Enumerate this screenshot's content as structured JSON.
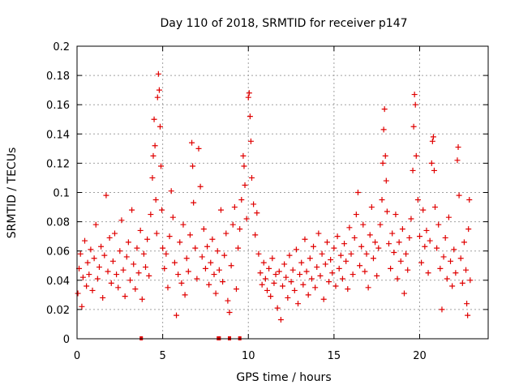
{
  "chart_data": {
    "type": "scatter",
    "title": "Day 110 of 2018, SRMTID for receiver p147",
    "xlabel": "GPS time / hours",
    "ylabel": "SRMTID / TECUs",
    "xlim": [
      0,
      24
    ],
    "ylim": [
      0,
      0.2
    ],
    "grid": true,
    "legend": "none",
    "marker": "plus",
    "color": "#e00000",
    "x_ticks": [
      0,
      5,
      10,
      15,
      20
    ],
    "x_tick_labels": [
      "0",
      "5",
      "10",
      "15",
      "20"
    ],
    "y_ticks": [
      0,
      0.02,
      0.04,
      0.06,
      0.08,
      0.1,
      0.12,
      0.14,
      0.16,
      0.18,
      0.2
    ],
    "y_tick_labels": [
      "0",
      "0.02",
      "0.04",
      "0.06",
      "0.08",
      "0.1",
      "0.12",
      "0.14",
      "0.16",
      "0.18",
      "0.2"
    ],
    "zero_markers_x": [
      3.75,
      8.25,
      8.3,
      8.9,
      9.5
    ],
    "series": [
      {
        "name": "SRMTID",
        "points": [
          [
            0.05,
            0.031
          ],
          [
            0.12,
            0.048
          ],
          [
            0.2,
            0.058
          ],
          [
            0.28,
            0.022
          ],
          [
            0.35,
            0.042
          ],
          [
            0.45,
            0.067
          ],
          [
            0.55,
            0.036
          ],
          [
            0.62,
            0.052
          ],
          [
            0.7,
            0.044
          ],
          [
            0.8,
            0.061
          ],
          [
            0.9,
            0.033
          ],
          [
            1.0,
            0.055
          ],
          [
            1.1,
            0.078
          ],
          [
            1.2,
            0.041
          ],
          [
            1.3,
            0.049
          ],
          [
            1.4,
            0.063
          ],
          [
            1.5,
            0.028
          ],
          [
            1.6,
            0.057
          ],
          [
            1.7,
            0.098
          ],
          [
            1.8,
            0.046
          ],
          [
            1.9,
            0.069
          ],
          [
            2.0,
            0.038
          ],
          [
            2.1,
            0.053
          ],
          [
            2.2,
            0.072
          ],
          [
            2.3,
            0.044
          ],
          [
            2.4,
            0.035
          ],
          [
            2.5,
            0.06
          ],
          [
            2.6,
            0.081
          ],
          [
            2.7,
            0.047
          ],
          [
            2.8,
            0.029
          ],
          [
            2.9,
            0.056
          ],
          [
            3.0,
            0.066
          ],
          [
            3.1,
            0.04
          ],
          [
            3.2,
            0.088
          ],
          [
            3.3,
            0.051
          ],
          [
            3.4,
            0.034
          ],
          [
            3.5,
            0.062
          ],
          [
            3.6,
            0.045
          ],
          [
            3.7,
            0.074
          ],
          [
            3.8,
            0.027
          ],
          [
            3.9,
            0.058
          ],
          [
            4.0,
            0.049
          ],
          [
            4.1,
            0.068
          ],
          [
            4.2,
            0.043
          ],
          [
            4.3,
            0.085
          ],
          [
            4.4,
            0.11
          ],
          [
            4.45,
            0.125
          ],
          [
            4.5,
            0.15
          ],
          [
            4.55,
            0.132
          ],
          [
            4.6,
            0.095
          ],
          [
            4.65,
            0.072
          ],
          [
            4.7,
            0.165
          ],
          [
            4.75,
            0.181
          ],
          [
            4.8,
            0.17
          ],
          [
            4.85,
            0.145
          ],
          [
            4.9,
            0.118
          ],
          [
            4.95,
            0.088
          ],
          [
            5.0,
            0.062
          ],
          [
            5.1,
            0.048
          ],
          [
            5.2,
            0.058
          ],
          [
            5.3,
            0.035
          ],
          [
            5.4,
            0.07
          ],
          [
            5.5,
            0.101
          ],
          [
            5.6,
            0.083
          ],
          [
            5.7,
            0.052
          ],
          [
            5.8,
            0.016
          ],
          [
            5.9,
            0.044
          ],
          [
            6.0,
            0.066
          ],
          [
            6.1,
            0.038
          ],
          [
            6.2,
            0.078
          ],
          [
            6.3,
            0.03
          ],
          [
            6.4,
            0.055
          ],
          [
            6.5,
            0.046
          ],
          [
            6.6,
            0.071
          ],
          [
            6.7,
            0.134
          ],
          [
            6.75,
            0.118
          ],
          [
            6.8,
            0.093
          ],
          [
            6.9,
            0.062
          ],
          [
            7.0,
            0.041
          ],
          [
            7.1,
            0.13
          ],
          [
            7.2,
            0.104
          ],
          [
            7.3,
            0.056
          ],
          [
            7.4,
            0.075
          ],
          [
            7.5,
            0.048
          ],
          [
            7.6,
            0.063
          ],
          [
            7.7,
            0.037
          ],
          [
            7.8,
            0.052
          ],
          [
            7.9,
            0.068
          ],
          [
            8.0,
            0.044
          ],
          [
            8.1,
            0.031
          ],
          [
            8.2,
            0.06
          ],
          [
            8.3,
            0.047
          ],
          [
            8.4,
            0.088
          ],
          [
            8.5,
            0.039
          ],
          [
            8.6,
            0.057
          ],
          [
            8.7,
            0.072
          ],
          [
            8.8,
            0.026
          ],
          [
            8.9,
            0.018
          ],
          [
            9.0,
            0.05
          ],
          [
            9.1,
            0.078
          ],
          [
            9.2,
            0.09
          ],
          [
            9.3,
            0.034
          ],
          [
            9.4,
            0.062
          ],
          [
            9.5,
            0.075
          ],
          [
            9.6,
            0.095
          ],
          [
            9.7,
            0.125
          ],
          [
            9.75,
            0.118
          ],
          [
            9.8,
            0.105
          ],
          [
            9.9,
            0.082
          ],
          [
            10.0,
            0.165
          ],
          [
            10.05,
            0.168
          ],
          [
            10.1,
            0.152
          ],
          [
            10.15,
            0.135
          ],
          [
            10.2,
            0.11
          ],
          [
            10.3,
            0.092
          ],
          [
            10.4,
            0.071
          ],
          [
            10.5,
            0.086
          ],
          [
            10.6,
            0.058
          ],
          [
            10.7,
            0.045
          ],
          [
            10.8,
            0.037
          ],
          [
            10.9,
            0.052
          ],
          [
            11.0,
            0.041
          ],
          [
            11.1,
            0.033
          ],
          [
            11.2,
            0.048
          ],
          [
            11.3,
            0.029
          ],
          [
            11.4,
            0.055
          ],
          [
            11.5,
            0.038
          ],
          [
            11.6,
            0.044
          ],
          [
            11.7,
            0.021
          ],
          [
            11.8,
            0.046
          ],
          [
            11.9,
            0.013
          ],
          [
            12.0,
            0.036
          ],
          [
            12.1,
            0.051
          ],
          [
            12.2,
            0.042
          ],
          [
            12.3,
            0.028
          ],
          [
            12.4,
            0.057
          ],
          [
            12.5,
            0.039
          ],
          [
            12.6,
            0.047
          ],
          [
            12.7,
            0.033
          ],
          [
            12.8,
            0.061
          ],
          [
            12.9,
            0.024
          ],
          [
            13.0,
            0.044
          ],
          [
            13.1,
            0.052
          ],
          [
            13.2,
            0.037
          ],
          [
            13.3,
            0.068
          ],
          [
            13.4,
            0.046
          ],
          [
            13.5,
            0.03
          ],
          [
            13.6,
            0.055
          ],
          [
            13.7,
            0.041
          ],
          [
            13.8,
            0.063
          ],
          [
            13.9,
            0.035
          ],
          [
            14.0,
            0.049
          ],
          [
            14.1,
            0.072
          ],
          [
            14.2,
            0.043
          ],
          [
            14.3,
            0.058
          ],
          [
            14.4,
            0.027
          ],
          [
            14.5,
            0.051
          ],
          [
            14.6,
            0.066
          ],
          [
            14.7,
            0.039
          ],
          [
            14.8,
            0.054
          ],
          [
            14.9,
            0.045
          ],
          [
            15.0,
            0.062
          ],
          [
            15.1,
            0.036
          ],
          [
            15.2,
            0.07
          ],
          [
            15.3,
            0.048
          ],
          [
            15.4,
            0.057
          ],
          [
            15.5,
            0.041
          ],
          [
            15.6,
            0.065
          ],
          [
            15.7,
            0.053
          ],
          [
            15.8,
            0.034
          ],
          [
            15.9,
            0.076
          ],
          [
            16.0,
            0.058
          ],
          [
            16.1,
            0.044
          ],
          [
            16.2,
            0.069
          ],
          [
            16.3,
            0.085
          ],
          [
            16.4,
            0.1
          ],
          [
            16.5,
            0.05
          ],
          [
            16.6,
            0.063
          ],
          [
            16.7,
            0.078
          ],
          [
            16.8,
            0.046
          ],
          [
            16.9,
            0.058
          ],
          [
            17.0,
            0.035
          ],
          [
            17.1,
            0.071
          ],
          [
            17.2,
            0.09
          ],
          [
            17.3,
            0.055
          ],
          [
            17.4,
            0.066
          ],
          [
            17.5,
            0.043
          ],
          [
            17.6,
            0.062
          ],
          [
            17.7,
            0.078
          ],
          [
            17.8,
            0.095
          ],
          [
            17.85,
            0.12
          ],
          [
            17.9,
            0.143
          ],
          [
            17.95,
            0.157
          ],
          [
            18.0,
            0.125
          ],
          [
            18.05,
            0.108
          ],
          [
            18.1,
            0.087
          ],
          [
            18.2,
            0.065
          ],
          [
            18.3,
            0.048
          ],
          [
            18.4,
            0.072
          ],
          [
            18.5,
            0.059
          ],
          [
            18.6,
            0.085
          ],
          [
            18.7,
            0.041
          ],
          [
            18.8,
            0.066
          ],
          [
            18.9,
            0.053
          ],
          [
            19.0,
            0.075
          ],
          [
            19.1,
            0.031
          ],
          [
            19.2,
            0.058
          ],
          [
            19.3,
            0.047
          ],
          [
            19.4,
            0.069
          ],
          [
            19.5,
            0.082
          ],
          [
            19.6,
            0.115
          ],
          [
            19.65,
            0.145
          ],
          [
            19.7,
            0.167
          ],
          [
            19.75,
            0.16
          ],
          [
            19.8,
            0.125
          ],
          [
            19.9,
            0.095
          ],
          [
            20.0,
            0.07
          ],
          [
            20.1,
            0.052
          ],
          [
            20.2,
            0.088
          ],
          [
            20.3,
            0.063
          ],
          [
            20.4,
            0.074
          ],
          [
            20.5,
            0.045
          ],
          [
            20.6,
            0.067
          ],
          [
            20.7,
            0.12
          ],
          [
            20.75,
            0.135
          ],
          [
            20.8,
            0.138
          ],
          [
            20.85,
            0.115
          ],
          [
            20.9,
            0.09
          ],
          [
            21.0,
            0.062
          ],
          [
            21.1,
            0.078
          ],
          [
            21.2,
            0.048
          ],
          [
            21.3,
            0.02
          ],
          [
            21.4,
            0.056
          ],
          [
            21.5,
            0.069
          ],
          [
            21.6,
            0.041
          ],
          [
            21.7,
            0.083
          ],
          [
            21.8,
            0.053
          ],
          [
            21.9,
            0.036
          ],
          [
            22.0,
            0.061
          ],
          [
            22.1,
            0.045
          ],
          [
            22.2,
            0.122
          ],
          [
            22.25,
            0.131
          ],
          [
            22.3,
            0.098
          ],
          [
            22.4,
            0.055
          ],
          [
            22.5,
            0.038
          ],
          [
            22.6,
            0.066
          ],
          [
            22.7,
            0.047
          ],
          [
            22.75,
            0.024
          ],
          [
            22.8,
            0.016
          ],
          [
            22.85,
            0.075
          ],
          [
            22.9,
            0.095
          ],
          [
            22.95,
            0.04
          ]
        ]
      }
    ]
  }
}
